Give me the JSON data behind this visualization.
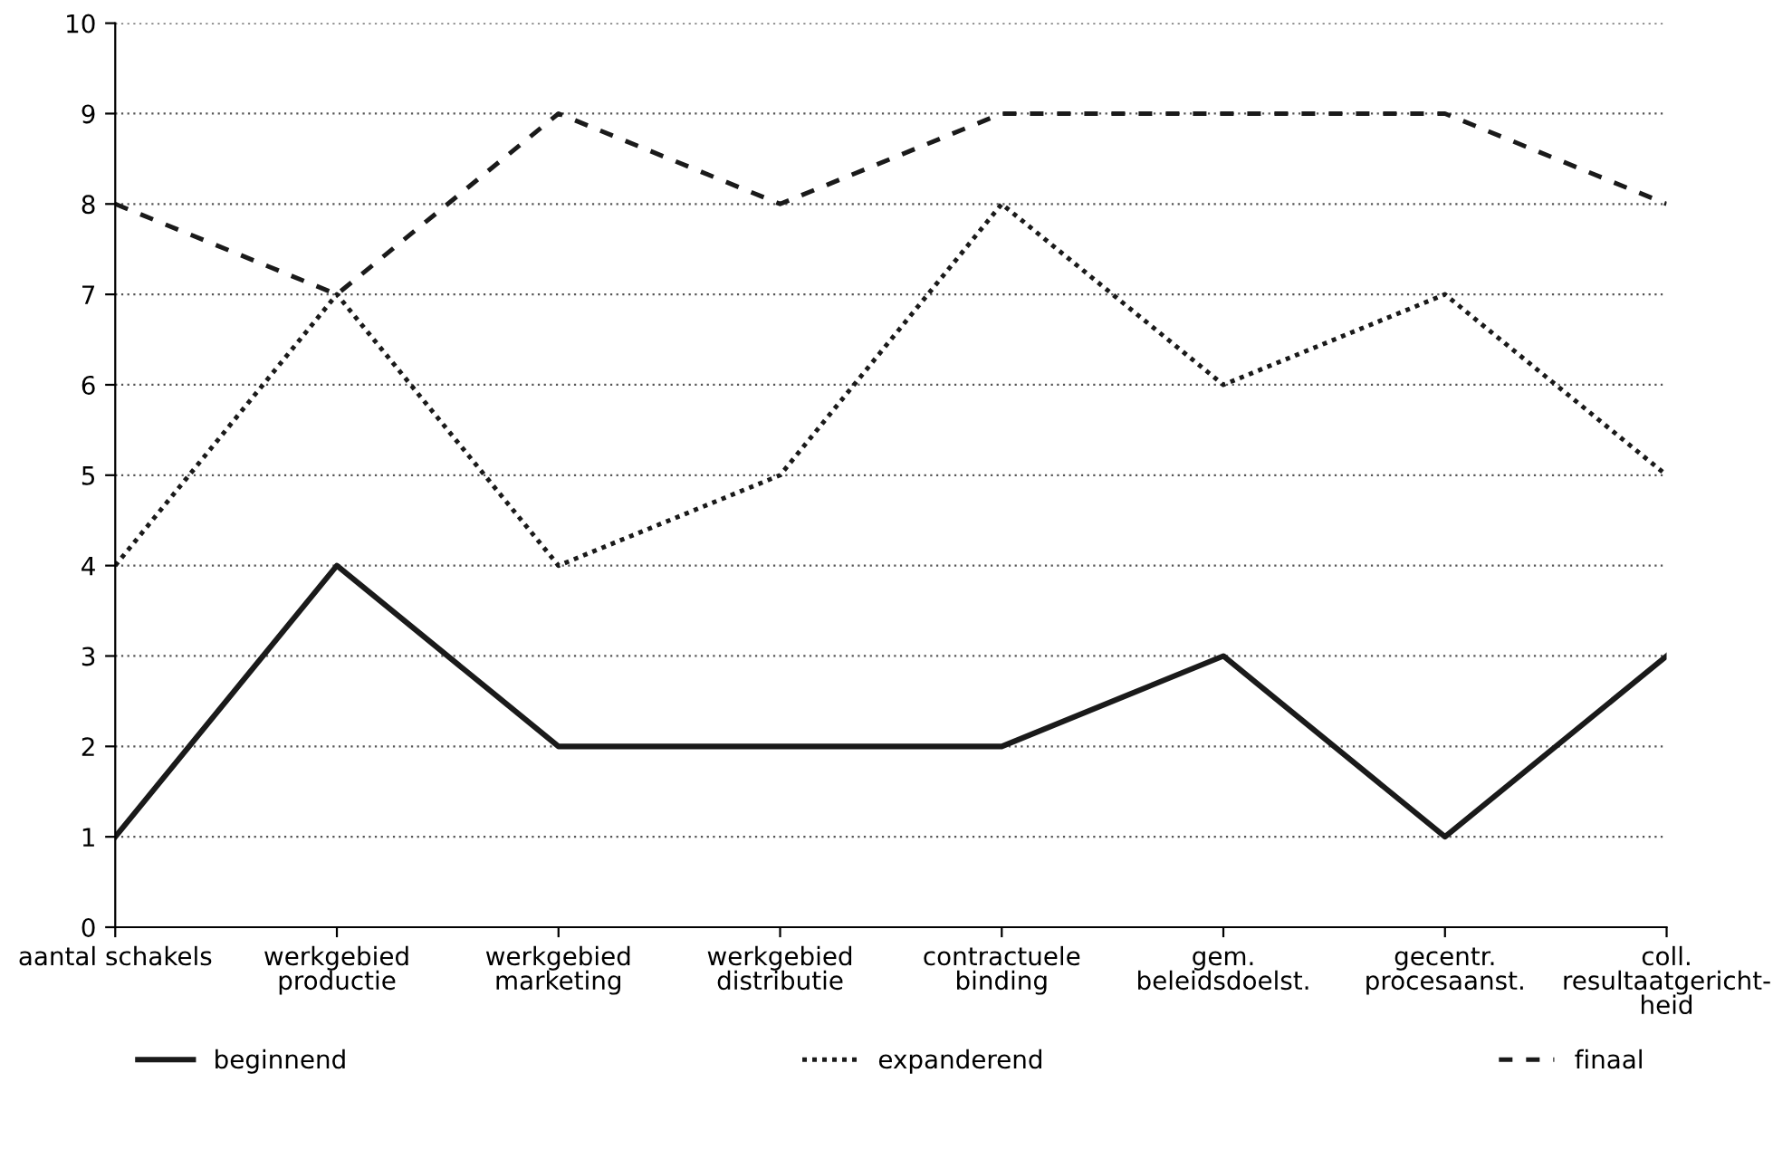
{
  "chart_data": {
    "type": "line",
    "categories": [
      "aantal schakels",
      "werkgebied\nproductie",
      "werkgebied\nmarketing",
      "werkgebied\ndistributie",
      "contractuele\nbinding",
      "gem.\nbeleidsdoelst.",
      "gecentr.\nprocesaanst.",
      "coll.\nresultaatgericht-\nheid"
    ],
    "series": [
      {
        "name": "beginnend",
        "color": "#1a1a1a",
        "line_style": "solid",
        "values": [
          1,
          4,
          2,
          2,
          2,
          3,
          1,
          3
        ]
      },
      {
        "name": "expanderend",
        "color": "#1a1a1a",
        "line_style": "dotted",
        "values": [
          4,
          7,
          4,
          5,
          8,
          6,
          7,
          5
        ]
      },
      {
        "name": "finaal",
        "color": "#1a1a1a",
        "line_style": "dashed",
        "values": [
          8,
          7,
          9,
          8,
          9,
          9,
          9,
          8
        ]
      }
    ],
    "ylim": [
      0,
      10
    ],
    "yticks": [
      0,
      1,
      2,
      3,
      4,
      5,
      6,
      7,
      8,
      9,
      10
    ],
    "grid": "y",
    "legend": "bottom"
  }
}
